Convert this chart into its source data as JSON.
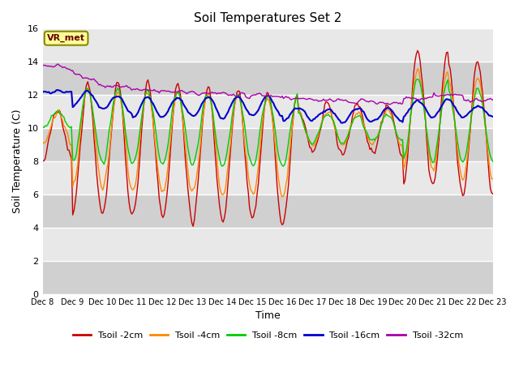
{
  "title": "Soil Temperatures Set 2",
  "xlabel": "Time",
  "ylabel": "Soil Temperature (C)",
  "ylim": [
    0,
    16
  ],
  "yticks": [
    0,
    2,
    4,
    6,
    8,
    10,
    12,
    14,
    16
  ],
  "xtick_labels": [
    "Dec 8",
    "Dec 9",
    "Dec 10",
    "Dec 11",
    "Dec 12",
    "Dec 13",
    "Dec 14",
    "Dec 15",
    "Dec 16",
    "Dec 17",
    "Dec 18",
    "Dec 19",
    "Dec 20",
    "Dec 21",
    "Dec 22",
    "Dec 23"
  ],
  "colors": {
    "Tsoil -2cm": "#cc0000",
    "Tsoil -4cm": "#ff8800",
    "Tsoil -8cm": "#00cc00",
    "Tsoil -16cm": "#0000cc",
    "Tsoil -32cm": "#aa00aa"
  },
  "legend_label": "VR_met",
  "fig_bg_color": "#ffffff",
  "plot_bg_color": "#e8e8e8",
  "grid_color": "#ffffff",
  "annotation_box_color": "#ffff99",
  "annotation_text_color": "#660000",
  "annotation_edge_color": "#888800"
}
